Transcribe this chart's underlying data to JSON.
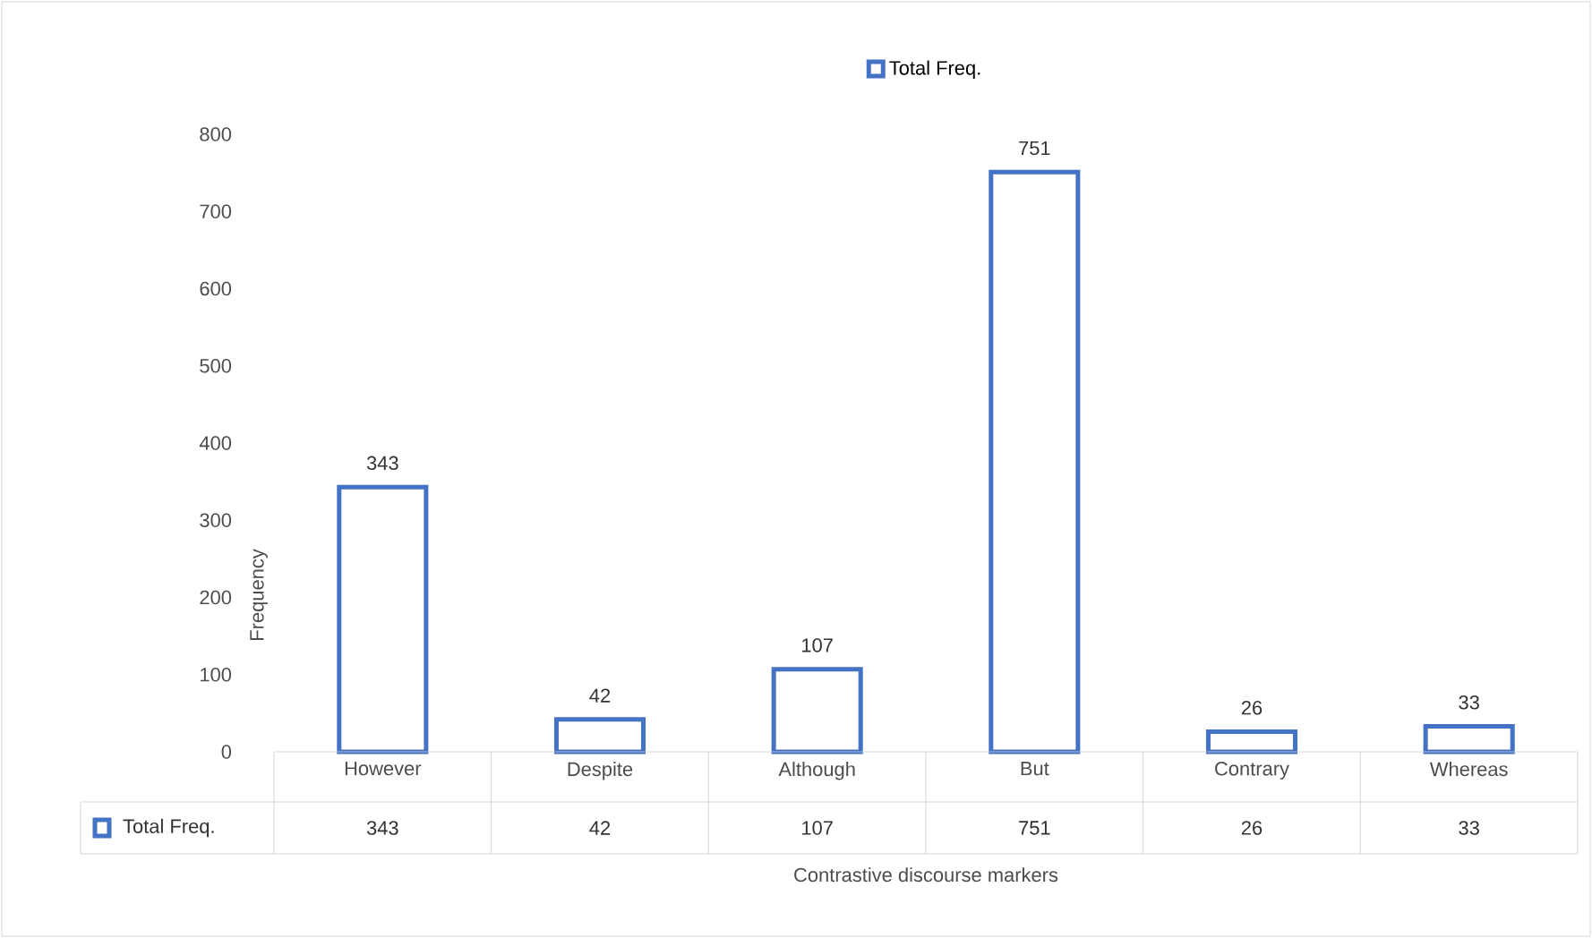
{
  "chart_data": {
    "type": "bar",
    "xlabel": "Contrastive discourse markers",
    "ylabel": "Frequency",
    "categories": [
      "However",
      "Despite",
      "Although",
      "But",
      "Contrary",
      "Whereas"
    ],
    "series": [
      {
        "name": "Total Freq.",
        "color": "#4472c4",
        "values": [
          343,
          42,
          107,
          751,
          26,
          33
        ],
        "value_labels": [
          "343",
          "42",
          "107",
          "751",
          "26",
          "33"
        ]
      }
    ],
    "ylim": [
      0,
      800
    ],
    "yticks": [
      0,
      100,
      200,
      300,
      400,
      500,
      600,
      700,
      800
    ],
    "legend": "top"
  }
}
